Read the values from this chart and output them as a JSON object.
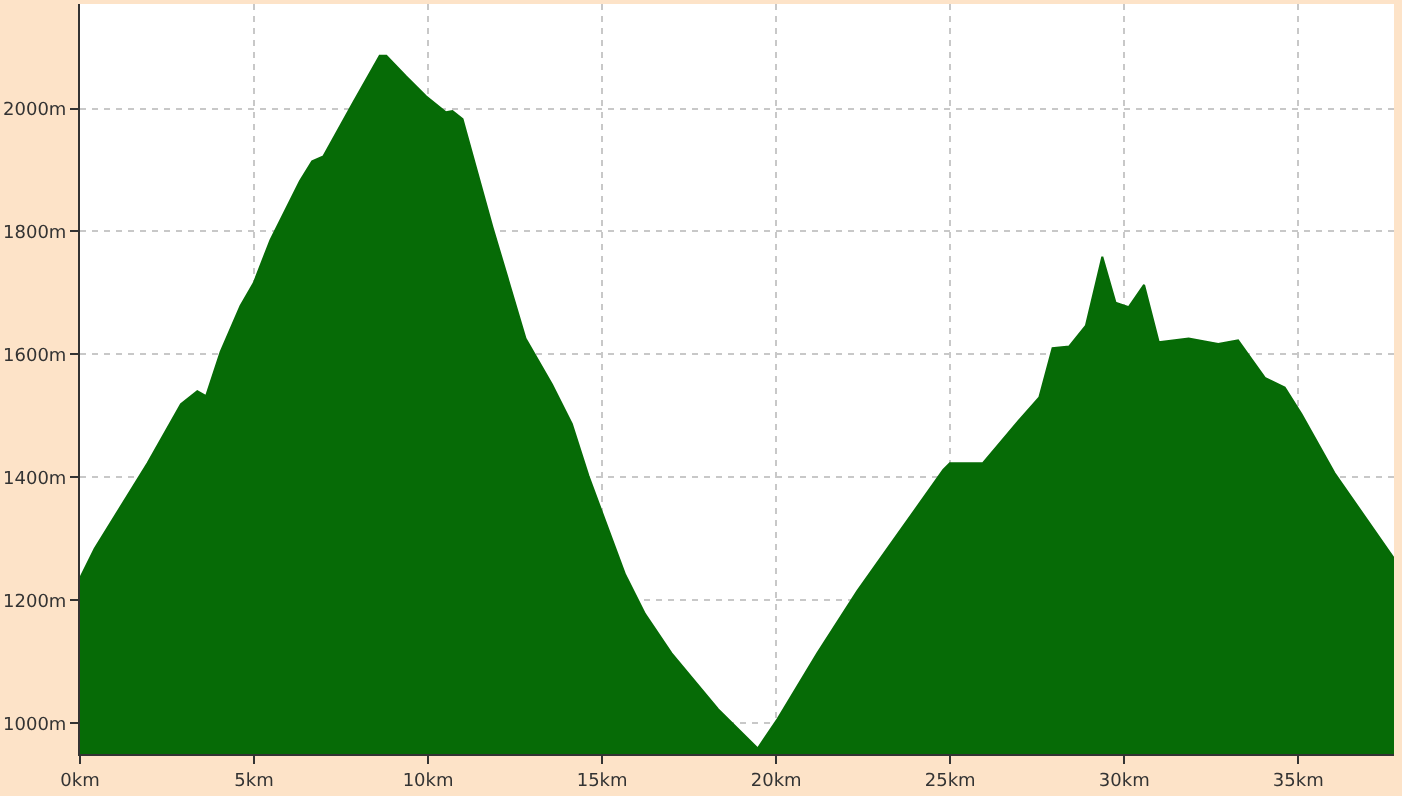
{
  "chart_data": {
    "type": "area",
    "x": [
      0,
      0.42,
      1.94,
      2.9,
      3.37,
      3.62,
      4.04,
      4.61,
      4.99,
      5.47,
      6.32,
      6.67,
      6.99,
      7.85,
      8.61,
      8.8,
      9.37,
      9.94,
      10.51,
      10.7,
      10.99,
      11.09,
      11.85,
      12.8,
      13.56,
      14.13,
      14.61,
      15.66,
      16.23,
      16.99,
      18.33,
      19.47,
      20.04,
      21.18,
      22.33,
      23.47,
      24.8,
      24.99,
      25.94,
      26.89,
      27.56,
      27.94,
      28.42,
      28.9,
      29.37,
      29.75,
      30.13,
      30.57,
      30.99,
      31.85,
      32.7,
      33.27,
      34.04,
      34.61,
      35.09,
      36.04,
      37.75
    ],
    "series": [
      {
        "color": "#066b06",
        "values": [
          1236,
          1284,
          1423,
          1519,
          1540,
          1532,
          1604,
          1679,
          1716,
          1786,
          1882,
          1914,
          1922,
          2010,
          2086,
          2086,
          2052,
          2020,
          1994,
          1996,
          1983,
          1962,
          1807,
          1626,
          1551,
          1487,
          1402,
          1242,
          1178,
          1114,
          1023,
          959,
          1007,
          1114,
          1215,
          1306,
          1412,
          1423,
          1423,
          1487,
          1530,
          1610,
          1613,
          1647,
          1759,
          1684,
          1677,
          1713,
          1620,
          1626,
          1617,
          1623,
          1562,
          1546,
          1503,
          1407,
          1268
        ]
      }
    ],
    "xlim": [
      0,
      37.75
    ],
    "ylim": [
      950,
      2170
    ],
    "xticks": [
      {
        "value": 0,
        "label": "0km"
      },
      {
        "value": 5,
        "label": "5km"
      },
      {
        "value": 10,
        "label": "10km"
      },
      {
        "value": 15,
        "label": "15km"
      },
      {
        "value": 20,
        "label": "20km"
      },
      {
        "value": 25,
        "label": "25km"
      },
      {
        "value": 30,
        "label": "30km"
      },
      {
        "value": 35,
        "label": "35km"
      }
    ],
    "yticks": [
      {
        "value": 1000,
        "label": "1000m"
      },
      {
        "value": 1200,
        "label": "1200m"
      },
      {
        "value": 1400,
        "label": "1400m"
      },
      {
        "value": 1600,
        "label": "1600m"
      },
      {
        "value": 1800,
        "label": "1800m"
      },
      {
        "value": 2000,
        "label": "2000m"
      }
    ],
    "grid": true,
    "legend": false
  }
}
